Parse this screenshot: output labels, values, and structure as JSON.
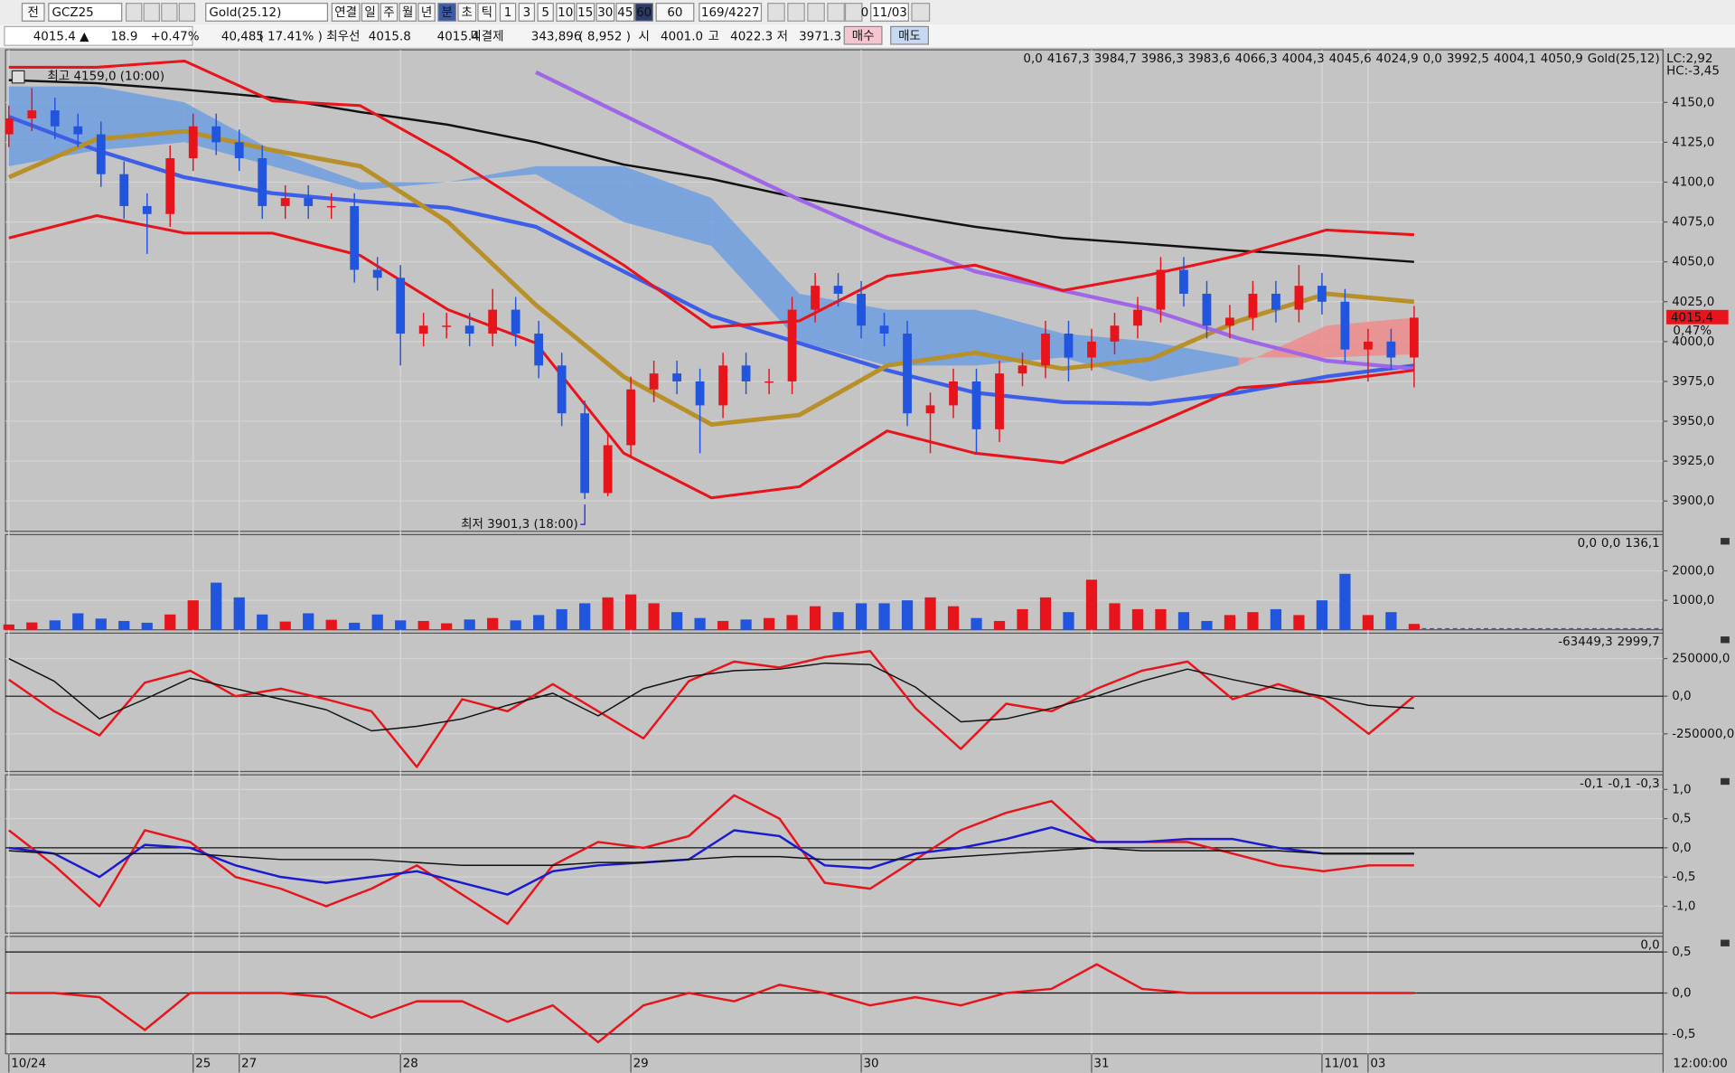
{
  "toolbar": {
    "market": "전",
    "symbol": "GCZ25",
    "name": "Gold(25.12)",
    "buttons": [
      "연결",
      "일",
      "주",
      "월",
      "년",
      "분",
      "초",
      "틱",
      "1",
      "3",
      "5",
      "10",
      "15",
      "30",
      "45",
      "60"
    ],
    "period": "60",
    "count": "169/4227",
    "offset": "0",
    "date": "11/03"
  },
  "quote": {
    "price": "4015.4 ▲",
    "change": "18.9",
    "change_pct": "+0.47%",
    "volume": "40,485",
    "volume_ratio": "( 17.41% )",
    "best_label": "최우선",
    "best_ask": "4015.8",
    "best_bid": "4015.4",
    "oi_label": "미결제",
    "oi": "343,896",
    "oi_change": "( 8,952 )",
    "open_label": "시",
    "open": "4001.0",
    "high_label": "고",
    "high": "4022.3",
    "low_label": "저",
    "low": "3971.3",
    "buy": "매수",
    "sell": "매도"
  },
  "chart_data": [
    {
      "type": "candlestick",
      "up_color": "#e8141b",
      "down_color": "#2255dd",
      "categories": [
        "10/24",
        null,
        null,
        null,
        null,
        null,
        null,
        null,
        "25",
        null,
        "27",
        null,
        null,
        null,
        null,
        null,
        null,
        "28",
        null,
        null,
        null,
        null,
        null,
        null,
        null,
        null,
        null,
        "29",
        null,
        null,
        null,
        null,
        null,
        null,
        null,
        null,
        null,
        "30",
        null,
        null,
        null,
        null,
        null,
        null,
        null,
        null,
        null,
        "31",
        null,
        null,
        null,
        null,
        null,
        null,
        null,
        null,
        null,
        "11/01",
        null,
        "03",
        null,
        null
      ],
      "open": [
        4130,
        4140,
        4145,
        4135,
        4130,
        4105,
        4085,
        4080,
        4115,
        4135,
        4125,
        4115,
        4085,
        4090,
        4085,
        4085,
        4045,
        4040,
        4005,
        4010,
        4010,
        4005,
        4020,
        4005,
        3985,
        3955,
        3905,
        3935,
        3970,
        3980,
        3975,
        3960,
        3985,
        3975,
        3975,
        4020,
        4035,
        4030,
        4010,
        4005,
        3955,
        3960,
        3975,
        3945,
        3980,
        3985,
        4005,
        3990,
        4000,
        4010,
        4020,
        4045,
        4030,
        4010,
        4015,
        4030,
        4020,
        4035,
        4025,
        3995,
        4000,
        3990
      ],
      "high": [
        4148,
        4159,
        4153,
        4143,
        4138,
        4113,
        4093,
        4123,
        4143,
        4143,
        4133,
        4123,
        4098,
        4098,
        4093,
        4093,
        4053,
        4048,
        4018,
        4018,
        4018,
        4033,
        4028,
        4013,
        3993,
        3963,
        3943,
        3978,
        3988,
        3988,
        3983,
        3993,
        3993,
        3983,
        4028,
        4043,
        4043,
        4038,
        4018,
        4013,
        3968,
        3983,
        3983,
        3988,
        3993,
        4013,
        4013,
        4008,
        4018,
        4028,
        4053,
        4053,
        4038,
        4023,
        4038,
        4038,
        4048,
        4043,
        4033,
        4008,
        4008,
        4022.3
      ],
      "low": [
        4122,
        4132,
        4127,
        4122,
        4097,
        4077,
        4055,
        4072,
        4107,
        4117,
        4107,
        4077,
        4077,
        4077,
        4077,
        4037,
        4032,
        3985,
        3997,
        4002,
        3997,
        3997,
        3997,
        3977,
        3947,
        3901.3,
        3903,
        3927,
        3962,
        3967,
        3930,
        3952,
        3967,
        3967,
        3967,
        4012,
        4022,
        4002,
        3997,
        3947,
        3930,
        3952,
        3930,
        3937,
        3972,
        3977,
        3975,
        3982,
        3992,
        4002,
        4012,
        4022,
        4002,
        4002,
        4007,
        4012,
        4012,
        4017,
        3987,
        3975,
        3982,
        3971.3
      ],
      "close": [
        4140,
        4145,
        4135,
        4130,
        4105,
        4085,
        4080,
        4115,
        4135,
        4125,
        4115,
        4085,
        4090,
        4085,
        4085,
        4045,
        4040,
        4005,
        4010,
        4010,
        4005,
        4020,
        4005,
        3985,
        3955,
        3905,
        3935,
        3970,
        3980,
        3975,
        3960,
        3985,
        3975,
        3975,
        4020,
        4035,
        4030,
        4010,
        4005,
        3955,
        3960,
        3975,
        3945,
        3980,
        3985,
        4005,
        3990,
        4000,
        4010,
        4020,
        4045,
        4030,
        4010,
        4015,
        4030,
        4020,
        4035,
        4025,
        3995,
        4000,
        3990,
        4015
      ],
      "overlays": [
        {
          "color": "#111111",
          "values": [
            4164,
            4162,
            4158,
            4153,
            4144,
            4136,
            4125,
            4111,
            4102,
            4090,
            4081,
            4072,
            4065,
            4061,
            4057,
            4054,
            4050
          ]
        },
        {
          "color": "#3d5ee8",
          "values": [
            4141,
            4120,
            4103,
            4093,
            4088,
            4084,
            4072,
            4044,
            4016,
            3999,
            3982,
            3968,
            3962,
            3961,
            3968,
            3978,
            3985
          ]
        },
        {
          "color": "#b8902a",
          "values": [
            4103,
            4127,
            4132,
            4120,
            4110,
            4075,
            4023,
            3978,
            3948,
            3954,
            3985,
            3993,
            3983,
            3989,
            4013,
            4030,
            4025
          ]
        },
        {
          "color": "#a066e8",
          "values": [
            null,
            null,
            null,
            null,
            null,
            null,
            4169,
            4142,
            4115,
            4089,
            4065,
            4044,
            4032,
            4020,
            4002,
            3988,
            3983
          ]
        },
        {
          "color": "#e8141b",
          "values": [
            4172,
            4172,
            4176,
            4151,
            4148,
            4117,
            4082,
            4048,
            4009,
            4013,
            4041,
            4048,
            4032,
            4042,
            4054,
            4070,
            4067
          ]
        },
        {
          "color": "#e8141b",
          "values": [
            4065,
            4079,
            4068,
            4068,
            4054,
            4020,
            3999,
            3930,
            3902,
            3909,
            3944,
            3930,
            3924,
            3947,
            3971,
            3975,
            3982
          ]
        }
      ],
      "cloud": {
        "up_color": "#6f9ee0",
        "down_color": "#ee8c8c",
        "span_a": [
          4160,
          4160,
          4150,
          4120,
          4100,
          4100,
          4110,
          4110,
          4090,
          4030,
          4020,
          4020,
          4005,
          4000,
          3990,
          3990,
          3992
        ],
        "span_b": [
          4110,
          4120,
          4125,
          4110,
          4095,
          4100,
          4105,
          4075,
          4060,
          4000,
          3985,
          3985,
          3990,
          3975,
          3985,
          4010,
          4015
        ]
      },
      "ylim": [
        3881,
        4183
      ],
      "yticks": [
        {
          "value": 3900,
          "label": "3900,0"
        },
        {
          "value": 3925,
          "label": "3925,0"
        },
        {
          "value": 3950,
          "label": "3950,0"
        },
        {
          "value": 3975,
          "label": "3975,0"
        },
        {
          "value": 4000,
          "label": "4000,0"
        },
        {
          "value": 4025,
          "label": "4025,0"
        },
        {
          "value": 4050,
          "label": "4050,0"
        },
        {
          "value": 4075,
          "label": "4075,0"
        },
        {
          "value": 4100,
          "label": "4100,0"
        },
        {
          "value": 4125,
          "label": "4125,0"
        },
        {
          "value": 4150,
          "label": "4150,0"
        }
      ],
      "legend_items": [
        {
          "text": "0,0",
          "color": "#333399"
        },
        {
          "text": "4167,3",
          "color": "#555555"
        },
        {
          "text": "3984,7",
          "color": "#8a5ce0"
        },
        {
          "text": "3986,3",
          "color": "#2255dd"
        },
        {
          "text": "3983,6",
          "color": "#e8141b"
        },
        {
          "text": "4066,3",
          "color": "#e8141b"
        },
        {
          "text": "4004,3",
          "color": "#e8141b"
        },
        {
          "text": "4045,6",
          "color": "#e8141b"
        },
        {
          "text": "4024,9",
          "color": "#b8902a"
        },
        {
          "text": "0,0",
          "color": "#22aadd"
        },
        {
          "text": "3992,5",
          "color": "#7f9fe0"
        },
        {
          "text": "4004,1",
          "color": "#e89a9a"
        },
        {
          "text": "4050,9",
          "color": "#111111"
        },
        {
          "text": "Gold(25,12)",
          "color": "#111111"
        }
      ],
      "lc_label": "LC:2,92",
      "hc_label": "HC:-3,45",
      "last_price_label": "4015,4",
      "last_pct_label": "0,47%",
      "annotations": [
        {
          "text": "최고 4159,0 (10:00)"
        },
        {
          "text": "최저 3901,3 (18:00)"
        }
      ],
      "time_label": "12:00:00"
    },
    {
      "type": "volume",
      "values": [
        180,
        250,
        320,
        560,
        380,
        300,
        240,
        520,
        1000,
        1600,
        1100,
        520,
        280,
        560,
        340,
        240,
        520,
        320,
        300,
        220,
        350,
        400,
        320,
        500,
        700,
        900,
        1100,
        1200,
        900,
        600,
        400,
        300,
        350,
        400,
        500,
        800,
        600,
        900,
        900,
        1000,
        1100,
        800,
        400,
        300,
        700,
        1100,
        600,
        1700,
        900,
        700,
        700,
        600,
        300,
        500,
        600,
        700,
        500,
        1000,
        1900,
        500,
        600,
        200
      ],
      "ylim": [
        0,
        3230
      ],
      "yticks": [
        {
          "value": 1000,
          "label": "1000,0"
        },
        {
          "value": 2000,
          "label": "2000,0"
        }
      ],
      "header_labels": [
        {
          "text": "0,0",
          "color": "#d0208a"
        },
        {
          "text": "0,0",
          "color": "#e8141b"
        },
        {
          "text": "136,1",
          "color": "#111111"
        }
      ]
    },
    {
      "type": "line",
      "series": [
        {
          "color": "#e8141b",
          "values": [
            110000,
            -100000,
            -260000,
            90000,
            170000,
            0,
            50000,
            -20000,
            -100000,
            -470000,
            -20000,
            -100000,
            80000,
            -100000,
            -280000,
            100000,
            230000,
            190000,
            260000,
            300000,
            -80000,
            -350000,
            -50000,
            -100000,
            50000,
            170000,
            230000,
            -20000,
            80000,
            -20000,
            -250000,
            0
          ]
        },
        {
          "color": "#111111",
          "values": [
            250000,
            100000,
            -150000,
            -20000,
            120000,
            50000,
            -20000,
            -90000,
            -230000,
            -200000,
            -150000,
            -60000,
            20000,
            -130000,
            50000,
            130000,
            170000,
            180000,
            220000,
            210000,
            60000,
            -170000,
            -150000,
            -80000,
            0,
            100000,
            180000,
            110000,
            50000,
            0,
            -60000,
            -80000
          ]
        }
      ],
      "ylim": [
        -500000,
        419000
      ],
      "yticks": [
        {
          "value": -250000,
          "label": "-250000,0"
        },
        {
          "value": 0,
          "label": "0,0"
        },
        {
          "value": 250000,
          "label": "250000,0"
        }
      ],
      "header_labels": [
        {
          "text": "-63449,3",
          "color": "#111111"
        },
        {
          "text": "2999,7",
          "color": "#e8141b"
        }
      ]
    },
    {
      "type": "line",
      "series": [
        {
          "color": "#e8141b",
          "values": [
            0.3,
            -0.3,
            -1.0,
            0.3,
            0.1,
            -0.5,
            -0.7,
            -1.0,
            -0.7,
            -0.3,
            -0.8,
            -1.3,
            -0.3,
            0.1,
            0,
            0.2,
            0.9,
            0.5,
            -0.6,
            -0.7,
            -0.2,
            0.3,
            0.6,
            0.8,
            0.1,
            0.1,
            0.1,
            -0.1,
            -0.3,
            -0.4,
            -0.3,
            -0.3
          ]
        },
        {
          "color": "#1a1ad0",
          "values": [
            0,
            -0.1,
            -0.5,
            0.05,
            0,
            -0.3,
            -0.5,
            -0.6,
            -0.5,
            -0.4,
            -0.6,
            -0.8,
            -0.4,
            -0.3,
            -0.25,
            -0.2,
            0.3,
            0.2,
            -0.3,
            -0.35,
            -0.1,
            0,
            0.15,
            0.35,
            0.1,
            0.1,
            0.15,
            0.15,
            0,
            -0.1,
            -0.1,
            -0.1
          ]
        },
        {
          "color": "#111111",
          "values": [
            -0.05,
            -0.1,
            -0.1,
            -0.1,
            -0.1,
            -0.15,
            -0.2,
            -0.2,
            -0.2,
            -0.25,
            -0.3,
            -0.3,
            -0.3,
            -0.25,
            -0.25,
            -0.2,
            -0.15,
            -0.15,
            -0.2,
            -0.2,
            -0.2,
            -0.15,
            -0.1,
            -0.05,
            0,
            -0.05,
            -0.05,
            -0.05,
            -0.05,
            -0.1,
            -0.1,
            -0.1
          ]
        }
      ],
      "ylim": [
        -1.46,
        1.25
      ],
      "yticks": [
        {
          "value": -1,
          "label": "-1,0"
        },
        {
          "value": -0.5,
          "label": "-0,5"
        },
        {
          "value": 0,
          "label": "0,0"
        },
        {
          "value": 0.5,
          "label": "0,5"
        },
        {
          "value": 1,
          "label": "1,0"
        }
      ],
      "header_labels": [
        {
          "text": "-0,1",
          "color": "#111111"
        },
        {
          "text": "-0,1",
          "color": "#1a1ad0"
        },
        {
          "text": "-0,3",
          "color": "#e8141b"
        }
      ]
    },
    {
      "type": "line",
      "series": [
        {
          "color": "#e8141b",
          "values": [
            0,
            0,
            -0.05,
            -0.45,
            0,
            0,
            0,
            -0.05,
            -0.3,
            -0.1,
            -0.1,
            -0.35,
            -0.15,
            -0.6,
            -0.15,
            0,
            -0.1,
            0.1,
            0,
            -0.15,
            -0.05,
            -0.15,
            0,
            0.05,
            0.35,
            0.05,
            0,
            0,
            0,
            0,
            0,
            0
          ]
        }
      ],
      "ylim": [
        -0.74,
        0.69
      ],
      "yticks": [
        {
          "value": -0.5,
          "label": "-0,5"
        },
        {
          "value": 0,
          "label": "0,0"
        },
        {
          "value": 0.5,
          "label": "0,5"
        }
      ],
      "header_labels": [
        {
          "text": "0,0",
          "color": "#e8141b"
        }
      ]
    }
  ]
}
